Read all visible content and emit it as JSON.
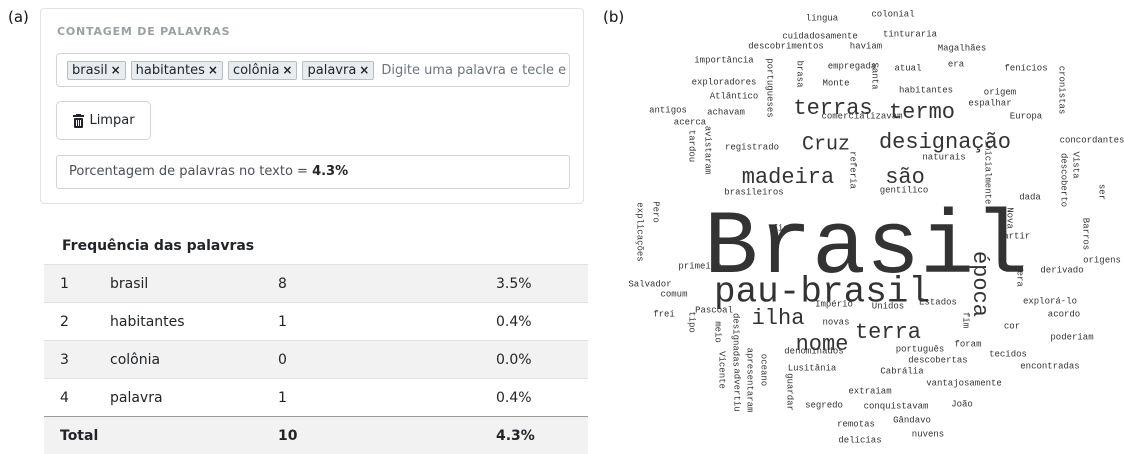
{
  "labels": {
    "a": "(a)",
    "b": "(b)"
  },
  "panel": {
    "title": "CONTAGEM DE PALAVRAS",
    "tags": [
      "brasil",
      "habitantes",
      "colônia",
      "palavra"
    ],
    "remove_icon": "×",
    "input_placeholder": "Digite uma palavra e tecle e",
    "clear_button": "Limpar",
    "percentage_text": "Porcentagem de palavras no texto =",
    "percentage_value": "4.3%"
  },
  "table": {
    "title": "Frequência das palavras",
    "rows": [
      [
        1,
        "brasil",
        8,
        "3.5%"
      ],
      [
        2,
        "habitantes",
        1,
        "0.4%"
      ],
      [
        3,
        "colônia",
        0,
        "0.0%"
      ],
      [
        4,
        "palavra",
        1,
        "0.4%"
      ]
    ],
    "total": [
      "Total",
      10,
      "4.3%"
    ]
  },
  "word_cloud": {
    "words": [
      "língua",
      "colonial",
      "cuidadosamente",
      "tinturaria",
      "descobrimentos",
      "haviam",
      "Magalhães",
      "importância",
      "portugueses",
      "brasa",
      "empregada",
      "Santa",
      "atual",
      "era",
      "fenícios",
      "exploradores",
      "Monte",
      "habitantes",
      "origem",
      "cronistas",
      "Atlântico",
      "terras",
      "termo",
      "espalhar",
      "antigos",
      "achavam",
      "comercializavam",
      "Europa",
      "acerca",
      "Cruz",
      "designação",
      "concordantes",
      "avistaram",
      "tardou",
      "registrado",
      "inicialmente",
      "naturais",
      "madeira",
      "são",
      "Vista",
      "descoberto",
      "referia",
      "brasileiros",
      "gentílico",
      "dada",
      "ser",
      "explicações",
      "Pero",
      "Brasil",
      "Nova",
      "ficar",
      "partir",
      "Barros",
      "origens",
      "época",
      "primeira",
      "derivado",
      "Vera",
      "pau-brasil",
      "Salvador",
      "comum",
      "Império",
      "Unidos",
      "Estados",
      "explorá-lo",
      "frei",
      "Pascoal",
      "ilha",
      "tipo",
      "terra",
      "acordo",
      "fim",
      "novas",
      "cor",
      "designadas",
      "nome",
      "foram",
      "poderiam",
      "meio",
      "oceano",
      "apresentaram",
      "Vicente",
      "advertiu",
      "denominados",
      "português",
      "tecidos",
      "descobertas",
      "encontradas",
      "Lusitânia",
      "Cabrália",
      "vantajosamente",
      "guardar",
      "extraiam",
      "segredo",
      "conquistavam",
      "João",
      "remotas",
      "Gândavo",
      "nuvens",
      "delícias"
    ]
  }
}
